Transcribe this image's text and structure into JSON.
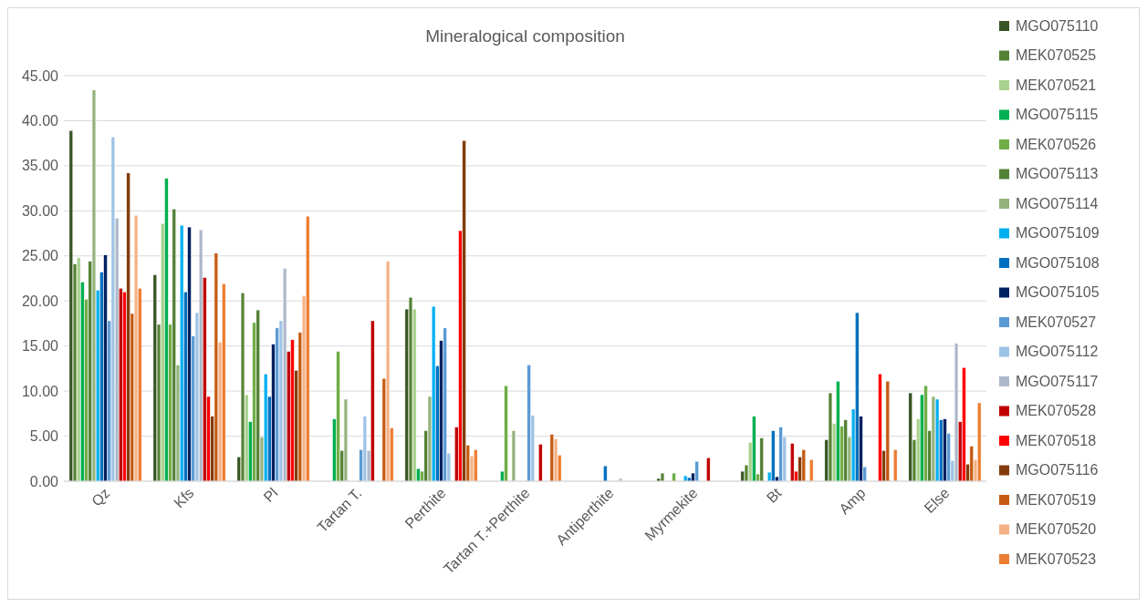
{
  "chart_data": {
    "type": "bar",
    "title": "Mineralogical composition",
    "categories": [
      "Qz",
      "Kfs",
      "Pl",
      "Tartan T.",
      "Perthite",
      "Tartan T.+Perthite",
      "Antiperthite",
      "Myrmekite",
      "Bt",
      "Amp",
      "Else"
    ],
    "series": [
      {
        "name": "MGO075110",
        "color": "#375623",
        "values": [
          38.9,
          22.9,
          2.7,
          null,
          19.1,
          null,
          null,
          0.3,
          1.1,
          4.6,
          9.8
        ]
      },
      {
        "name": "MEK070525",
        "color": "#548235",
        "values": [
          24.1,
          17.4,
          20.9,
          null,
          20.4,
          null,
          null,
          0.9,
          1.8,
          9.8,
          4.6
        ]
      },
      {
        "name": "MEK070521",
        "color": "#a9d18e",
        "values": [
          24.8,
          28.6,
          9.6,
          null,
          19.1,
          null,
          null,
          null,
          4.3,
          6.4,
          6.9
        ]
      },
      {
        "name": "MGO075115",
        "color": "#00b050",
        "values": [
          22.1,
          33.6,
          6.6,
          6.9,
          1.4,
          1.1,
          null,
          null,
          7.2,
          11.1,
          9.6
        ]
      },
      {
        "name": "MEK070526",
        "color": "#70ad47",
        "values": [
          20.2,
          17.4,
          17.6,
          14.4,
          1.1,
          10.6,
          null,
          0.9,
          0.8,
          6.1,
          10.6
        ]
      },
      {
        "name": "MGO075113",
        "color": "#538135",
        "values": [
          24.4,
          30.2,
          19.0,
          3.4,
          5.6,
          null,
          null,
          null,
          4.8,
          6.8,
          5.6
        ]
      },
      {
        "name": "MGO075114",
        "color": "#93b37c",
        "values": [
          43.4,
          12.9,
          4.9,
          9.1,
          9.4,
          5.6,
          null,
          null,
          null,
          4.9,
          9.4
        ]
      },
      {
        "name": "MGO075109",
        "color": "#00b0f0",
        "values": [
          21.2,
          28.4,
          11.9,
          null,
          19.4,
          null,
          null,
          0.6,
          1.0,
          8.0,
          9.1
        ]
      },
      {
        "name": "MGO075108",
        "color": "#0070c0",
        "values": [
          23.2,
          21.0,
          9.4,
          null,
          12.8,
          null,
          1.7,
          0.4,
          5.6,
          18.7,
          6.8
        ]
      },
      {
        "name": "MGO075105",
        "color": "#002060",
        "values": [
          25.1,
          28.2,
          15.2,
          null,
          15.6,
          null,
          null,
          0.9,
          0.5,
          7.2,
          6.9
        ]
      },
      {
        "name": "MEK070527",
        "color": "#5b9bd5",
        "values": [
          17.8,
          16.1,
          17.0,
          3.5,
          17.0,
          12.9,
          null,
          2.2,
          6.0,
          1.6,
          5.3
        ]
      },
      {
        "name": "MGO075112",
        "color": "#9dc3e6",
        "values": [
          38.2,
          18.7,
          17.8,
          7.2,
          3.1,
          7.3,
          null,
          null,
          4.9,
          null,
          2.3
        ]
      },
      {
        "name": "MGO075117",
        "color": "#adb9ca",
        "values": [
          29.2,
          27.9,
          23.6,
          3.4,
          null,
          null,
          0.3,
          null,
          null,
          null,
          15.3
        ]
      },
      {
        "name": "MEK070528",
        "color": "#c00000",
        "values": [
          21.4,
          22.6,
          14.4,
          17.8,
          6.0,
          4.1,
          null,
          2.6,
          4.2,
          null,
          6.6
        ]
      },
      {
        "name": "MEK070518",
        "color": "#ff0000",
        "values": [
          21.0,
          9.4,
          15.7,
          null,
          27.8,
          null,
          null,
          null,
          1.1,
          11.9,
          12.6
        ]
      },
      {
        "name": "MGO075116",
        "color": "#843c0c",
        "values": [
          34.2,
          7.2,
          12.3,
          null,
          37.8,
          null,
          null,
          null,
          2.7,
          3.4,
          1.9
        ]
      },
      {
        "name": "MEK070519",
        "color": "#c55a11",
        "values": [
          18.6,
          25.3,
          16.5,
          11.4,
          4.0,
          5.2,
          null,
          null,
          3.5,
          11.1,
          3.9
        ]
      },
      {
        "name": "MEK070520",
        "color": "#f4b183",
        "values": [
          29.5,
          15.4,
          20.6,
          24.4,
          2.8,
          4.7,
          null,
          null,
          null,
          null,
          2.4
        ]
      },
      {
        "name": "MEK070523",
        "color": "#ed7d31",
        "values": [
          21.4,
          21.9,
          29.4,
          5.9,
          3.5,
          2.9,
          null,
          null,
          2.4,
          3.5,
          8.7
        ]
      }
    ],
    "ylim": [
      0,
      45
    ],
    "yticks": [
      {
        "value": 0,
        "label": "0.00"
      },
      {
        "value": 5,
        "label": "5.00"
      },
      {
        "value": 10,
        "label": "10.00"
      },
      {
        "value": 15,
        "label": "15.00"
      },
      {
        "value": 20,
        "label": "20.00"
      },
      {
        "value": 25,
        "label": "25.00"
      },
      {
        "value": 30,
        "label": "30.00"
      },
      {
        "value": 35,
        "label": "35.00"
      },
      {
        "value": 40,
        "label": "40.00"
      },
      {
        "value": 45,
        "label": "45.00"
      }
    ],
    "grid": "y",
    "legend": "right"
  }
}
